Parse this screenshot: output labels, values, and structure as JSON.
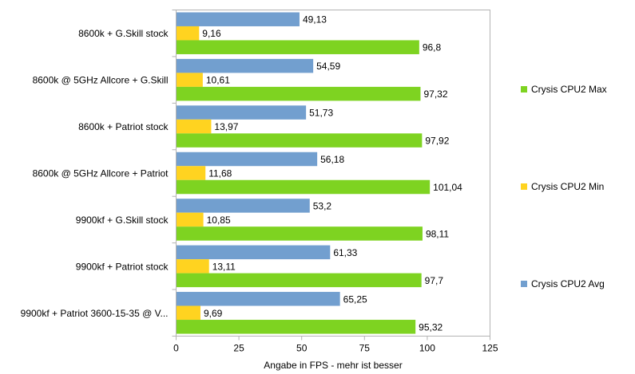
{
  "chart_data": {
    "type": "bar",
    "orientation": "horizontal",
    "categories": [
      "8600k + G.Skill stock",
      "8600k @ 5GHz Allcore + G.Skill",
      "8600k + Patriot stock",
      "8600k @ 5GHz Allcore + Patriot",
      "9900kf + G.Skill stock",
      "9900kf + Patriot stock",
      "9900kf + Patriot 3600-15-35 @ V..."
    ],
    "series": [
      {
        "name": "Crysis CPU2 Avg",
        "color": "#729fcf",
        "values": [
          49.13,
          54.59,
          51.73,
          56.18,
          53.2,
          61.33,
          65.25
        ],
        "labels": [
          "49,13",
          "54,59",
          "51,73",
          "56,18",
          "53,2",
          "61,33",
          "65,25"
        ]
      },
      {
        "name": "Crysis CPU2 Min",
        "color": "#ffd320",
        "values": [
          9.16,
          10.61,
          13.97,
          11.68,
          10.85,
          13.11,
          9.69
        ],
        "labels": [
          "9,16",
          "10,61",
          "13,97",
          "11,68",
          "10,85",
          "13,11",
          "9,69"
        ]
      },
      {
        "name": "Crysis CPU2 Max",
        "color": "#7ed321",
        "values": [
          96.8,
          97.32,
          97.92,
          101.04,
          98.11,
          97.7,
          95.32
        ],
        "labels": [
          "96,8",
          "97,32",
          "97,92",
          "101,04",
          "98,11",
          "97,7",
          "95,32"
        ]
      }
    ],
    "xlabel": "Angabe in FPS - mehr ist besser",
    "ylabel": "",
    "xlim": [
      0,
      125
    ],
    "xticks": [
      0,
      25,
      50,
      75,
      100,
      125
    ],
    "xtick_labels": [
      "0",
      "25",
      "50",
      "75",
      "100",
      "125"
    ],
    "legend_order": [
      "Crysis CPU2 Max",
      "Crysis CPU2 Min",
      "Crysis CPU2 Avg"
    ],
    "legend_position": "right",
    "grid": false
  }
}
